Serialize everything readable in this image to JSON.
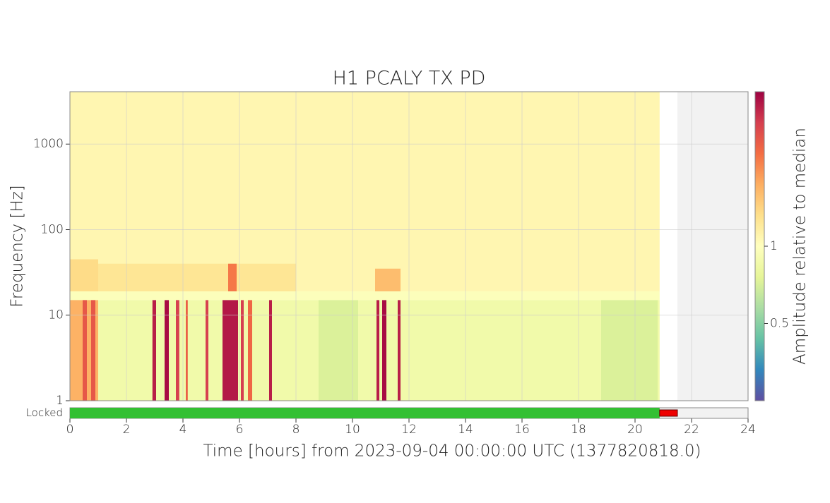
{
  "chart_data": {
    "type": "spectrogram",
    "title": "H1 PCALY TX PD",
    "xlabel": "Time [hours] from 2023-09-04 00:00:00 UTC (1377820818.0)",
    "ylabel": "Frequency [Hz]",
    "xlim": [
      0,
      24
    ],
    "xticks": [
      0,
      2,
      4,
      6,
      8,
      10,
      12,
      14,
      16,
      18,
      20,
      22,
      24
    ],
    "ylim": [
      1,
      4096
    ],
    "yticks": [
      1,
      10,
      100,
      1000
    ],
    "ylog": true,
    "grid": true,
    "colorbar": {
      "label": "Amplitude relative to median",
      "clim": [
        0.25,
        4
      ],
      "ticks": [
        0.5,
        1
      ],
      "log": true
    },
    "cells": [
      {
        "t": [
          0,
          20.87
        ],
        "f": [
          19,
          4096
        ],
        "amplitude": 1.08
      },
      {
        "t": [
          0,
          20.87
        ],
        "f": [
          15,
          19
        ],
        "amplitude": 0.97
      },
      {
        "t": [
          0,
          20.87
        ],
        "f": [
          1,
          15
        ],
        "amplitude": 0.86
      },
      {
        "t": [
          8.8,
          10.2
        ],
        "f": [
          1,
          15
        ],
        "amplitude": 0.72
      },
      {
        "t": [
          18.8,
          20.8
        ],
        "f": [
          1,
          15
        ],
        "amplitude": 0.72
      },
      {
        "t": [
          0,
          1
        ],
        "f": [
          1,
          15
        ],
        "amplitude": 1.7
      },
      {
        "t": [
          0,
          1
        ],
        "f": [
          19,
          45
        ],
        "amplitude": 1.35
      },
      {
        "t": [
          1,
          8
        ],
        "f": [
          19,
          40
        ],
        "amplitude": 1.25
      },
      {
        "t": [
          0.45,
          0.6
        ],
        "f": [
          1,
          15
        ],
        "amplitude": 2.6
      },
      {
        "t": [
          0.75,
          0.9
        ],
        "f": [
          1,
          15
        ],
        "amplitude": 2.6
      },
      {
        "t": [
          2.92,
          3.05
        ],
        "f": [
          1,
          15
        ],
        "amplitude": 3.5
      },
      {
        "t": [
          3.35,
          3.5
        ],
        "f": [
          1,
          15
        ],
        "amplitude": 3.8
      },
      {
        "t": [
          3.75,
          3.87
        ],
        "f": [
          1,
          15
        ],
        "amplitude": 3.0
      },
      {
        "t": [
          4.1,
          4.17
        ],
        "f": [
          1,
          15
        ],
        "amplitude": 2.5
      },
      {
        "t": [
          4.8,
          4.9
        ],
        "f": [
          1,
          15
        ],
        "amplitude": 3.0
      },
      {
        "t": [
          5.4,
          5.95
        ],
        "f": [
          1,
          15
        ],
        "amplitude": 3.6
      },
      {
        "t": [
          5.6,
          5.9
        ],
        "f": [
          19,
          40
        ],
        "amplitude": 2.2
      },
      {
        "t": [
          6.05,
          6.15
        ],
        "f": [
          1,
          15
        ],
        "amplitude": 3.0
      },
      {
        "t": [
          6.3,
          6.45
        ],
        "f": [
          1,
          15
        ],
        "amplitude": 2.4
      },
      {
        "t": [
          7.05,
          7.15
        ],
        "f": [
          1,
          15
        ],
        "amplitude": 3.5
      },
      {
        "t": [
          10.85,
          10.95
        ],
        "f": [
          1,
          15
        ],
        "amplitude": 3.5
      },
      {
        "t": [
          11.05,
          11.2
        ],
        "f": [
          1,
          15
        ],
        "amplitude": 3.8
      },
      {
        "t": [
          11.6,
          11.7
        ],
        "f": [
          1,
          15
        ],
        "amplitude": 3.5
      },
      {
        "t": [
          10.8,
          11.7
        ],
        "f": [
          19,
          35
        ],
        "amplitude": 1.6
      }
    ],
    "states": [
      {
        "name": "Locked",
        "segments": [
          {
            "t": [
              0,
              20.87
            ],
            "color": "#33c033"
          },
          {
            "t": [
              20.87,
              21.5
            ],
            "color": "#ee0000"
          }
        ]
      }
    ]
  }
}
